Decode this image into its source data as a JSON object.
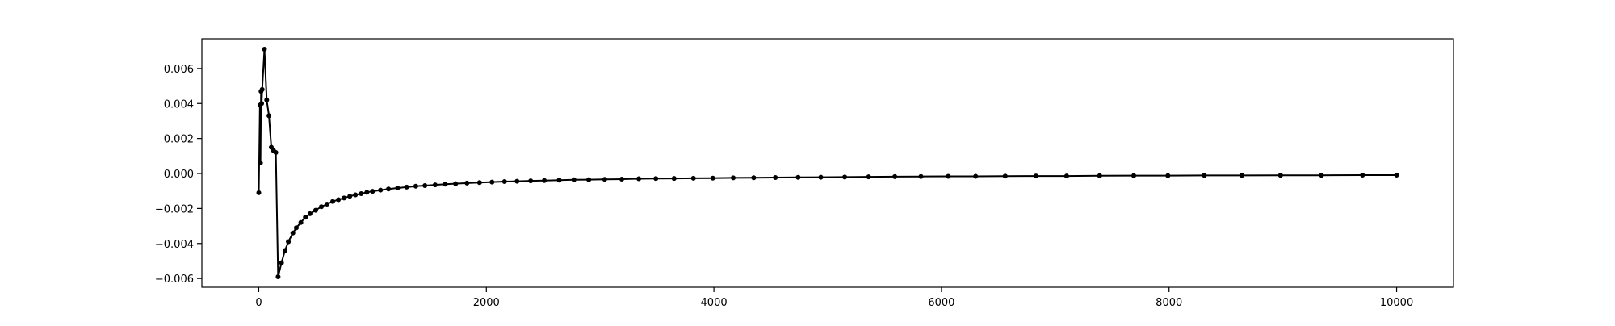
{
  "chart_data": {
    "type": "line",
    "title": "",
    "xlabel": "",
    "ylabel": "",
    "xlim": [
      -500,
      10500
    ],
    "ylim": [
      -0.0065,
      0.0077
    ],
    "grid": false,
    "legend": "none",
    "line_color": "#000000",
    "marker": "circle",
    "x_ticks": [
      0,
      2000,
      4000,
      6000,
      8000,
      10000
    ],
    "x_tick_labels": [
      "0",
      "2000",
      "4000",
      "6000",
      "8000",
      "10000"
    ],
    "y_ticks": [
      -0.006,
      -0.004,
      -0.002,
      0.0,
      0.002,
      0.004,
      0.006
    ],
    "y_tick_labels": [
      "−0.006",
      "−0.004",
      "−0.002",
      "0.000",
      "0.002",
      "0.004",
      "0.006"
    ],
    "series": [
      {
        "points": [
          [
            0,
            -0.0011
          ],
          [
            10,
            0.0039
          ],
          [
            15,
            0.0006
          ],
          [
            20,
            0.0047
          ],
          [
            25,
            0.004
          ],
          [
            30,
            0.0048
          ],
          [
            50,
            0.0071
          ],
          [
            70,
            0.0042
          ],
          [
            90,
            0.0033
          ],
          [
            110,
            0.0015
          ],
          [
            130,
            0.0013
          ],
          [
            150,
            0.0012
          ],
          [
            170,
            -0.0059
          ],
          [
            200,
            -0.0051
          ],
          [
            230,
            -0.0044
          ],
          [
            260,
            -0.0039
          ],
          [
            300,
            -0.0034
          ],
          [
            330,
            -0.0031
          ],
          [
            370,
            -0.0028
          ],
          [
            410,
            -0.0025
          ],
          [
            450,
            -0.0023
          ],
          [
            500,
            -0.0021
          ],
          [
            550,
            -0.0019
          ],
          [
            600,
            -0.00175
          ],
          [
            650,
            -0.0016
          ],
          [
            700,
            -0.0015
          ],
          [
            750,
            -0.0014
          ],
          [
            800,
            -0.0013
          ],
          [
            850,
            -0.00122
          ],
          [
            900,
            -0.00115
          ],
          [
            950,
            -0.00108
          ],
          [
            1000,
            -0.00102
          ],
          [
            1070,
            -0.00095
          ],
          [
            1140,
            -0.00089
          ],
          [
            1220,
            -0.00083
          ],
          [
            1300,
            -0.00078
          ],
          [
            1380,
            -0.00073
          ],
          [
            1460,
            -0.00069
          ],
          [
            1550,
            -0.00065
          ],
          [
            1640,
            -0.00061
          ],
          [
            1730,
            -0.00058
          ],
          [
            1830,
            -0.00055
          ],
          [
            1940,
            -0.00052
          ],
          [
            2050,
            -0.00049
          ],
          [
            2160,
            -0.00046
          ],
          [
            2270,
            -0.00044
          ],
          [
            2390,
            -0.00042
          ],
          [
            2510,
            -0.0004
          ],
          [
            2640,
            -0.00038
          ],
          [
            2770,
            -0.00036
          ],
          [
            2900,
            -0.00035
          ],
          [
            3040,
            -0.00033
          ],
          [
            3190,
            -0.00032
          ],
          [
            3340,
            -0.0003
          ],
          [
            3490,
            -0.00029
          ],
          [
            3650,
            -0.00028
          ],
          [
            3820,
            -0.00027
          ],
          [
            3990,
            -0.00026
          ],
          [
            4170,
            -0.00025
          ],
          [
            4350,
            -0.00024
          ],
          [
            4540,
            -0.00023
          ],
          [
            4740,
            -0.00022
          ],
          [
            4940,
            -0.00021
          ],
          [
            5150,
            -0.0002
          ],
          [
            5360,
            -0.00019
          ],
          [
            5590,
            -0.00018
          ],
          [
            5820,
            -0.00017
          ],
          [
            6060,
            -0.00016
          ],
          [
            6300,
            -0.00016
          ],
          [
            6560,
            -0.00015
          ],
          [
            6830,
            -0.00014
          ],
          [
            7100,
            -0.00014
          ],
          [
            7390,
            -0.00013
          ],
          [
            7690,
            -0.00012
          ],
          [
            7990,
            -0.00012
          ],
          [
            8310,
            -0.00011
          ],
          [
            8640,
            -0.00011
          ],
          [
            8980,
            -0.0001
          ],
          [
            9340,
            -0.0001
          ],
          [
            9700,
            -9e-05
          ],
          [
            10000,
            -9e-05
          ]
        ]
      }
    ]
  }
}
